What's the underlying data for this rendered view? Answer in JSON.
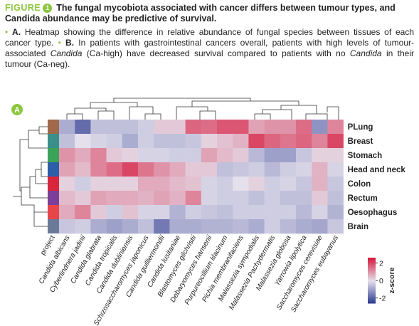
{
  "figure": {
    "label": "FIGURE",
    "number": "1",
    "title": "The fungal mycobiota associated with cancer differs between tumour types, and Candida abundance may be predictive of survival."
  },
  "caption": [
    "A.",
    " Heatmap showing the difference in relative abundance of fungal species between tissues of each cancer type. ",
    "B.",
    " In patients with gastrointestinal cancers overall, patients with high levels of tumour-associated ",
    "Candida",
    " (Ca-high) have decreased survival compared to patients with no ",
    "Candida",
    " in their tumour (Ca-neg)."
  ],
  "chart_data": {
    "type": "heatmap",
    "panel": "A",
    "project_label": "project",
    "columns": [
      "Candida albicans",
      "Cyberlindnera jadinii",
      "Candida glabrata",
      "Candida tropicalis",
      "Candida dubliniensis",
      "Schizosaccharomyces japonicus",
      "Candida guilliermondii",
      "Candida lusitaniae",
      "Blastomyces gilchristii",
      "Debaryomyces hansenii",
      "Purpureocillium lilacinum",
      "Pichia membranifaciens",
      "Malassezia sympodialis",
      "Malassezia Pachydermatis",
      "Malassezia globosa",
      "Yarrowia lipolytica",
      "Saccharomyces cerevisiae",
      "Saccharomyces eubayanus"
    ],
    "rows": [
      "PLung",
      "Breast",
      "Stomach",
      "Head and neck",
      "Colon",
      "Rectum",
      "Oesophagus",
      "Brain"
    ],
    "row_colors": [
      "#a0694a",
      "#3a8f8a",
      "#3aa35a",
      "#2b5fa8",
      "#d7263d",
      "#7b3f9a",
      "#e8454a",
      "#6b7a99"
    ],
    "values": [
      [
        -0.8,
        -1.8,
        -0.5,
        -0.5,
        -0.5,
        -0.3,
        0.3,
        0.3,
        1.6,
        1.5,
        1.8,
        1.8,
        0.8,
        1.0,
        1.0,
        1.5,
        -1.2,
        1.2
      ],
      [
        -0.5,
        0.0,
        -0.2,
        -0.3,
        -0.8,
        -0.3,
        -0.5,
        -0.5,
        -0.4,
        0.2,
        0.4,
        0.6,
        2.0,
        1.6,
        1.4,
        1.6,
        1.2,
        2.0
      ],
      [
        1.0,
        0.7,
        1.2,
        0.3,
        0.2,
        -0.2,
        -0.2,
        -0.3,
        -0.3,
        0.8,
        0.5,
        0.3,
        -0.6,
        -1.0,
        -1.0,
        -0.4,
        0.2,
        0.2
      ],
      [
        0.8,
        0.5,
        1.2,
        1.5,
        2.0,
        1.4,
        1.0,
        0.7,
        0.3,
        0.3,
        -0.5,
        -0.4,
        -0.3,
        -0.6,
        -0.3,
        -0.2,
        0.6,
        -0.2
      ],
      [
        0.2,
        -0.3,
        0.2,
        0.2,
        0.2,
        0.7,
        0.7,
        0.5,
        0.4,
        -0.2,
        -0.3,
        0.0,
        0.2,
        -0.3,
        -0.2,
        -0.4,
        0.6,
        -0.4
      ],
      [
        0.5,
        0.3,
        0.8,
        0.7,
        0.7,
        0.6,
        0.8,
        0.6,
        1.2,
        -0.2,
        -0.3,
        -0.3,
        -0.5,
        -0.3,
        -0.5,
        -0.5,
        0.3,
        -0.5
      ],
      [
        0.7,
        1.2,
        0.3,
        -0.3,
        0.4,
        -0.2,
        -0.2,
        -0.7,
        -0.3,
        -0.4,
        -0.5,
        -0.3,
        -0.3,
        -0.3,
        -0.3,
        -0.6,
        -0.2,
        -0.7
      ],
      [
        -0.4,
        -0.3,
        -0.8,
        -1.0,
        -0.8,
        -0.5,
        -1.6,
        -0.8,
        -0.8,
        -0.7,
        -0.7,
        -0.6,
        -0.8,
        -0.3,
        -0.6,
        -0.8,
        -0.9,
        -0.4
      ]
    ],
    "colorbar_title": "z-score",
    "zlim": [
      -2.6,
      2.6
    ],
    "zticks": [
      -2,
      0,
      2
    ],
    "colors": [
      "#2b3990",
      "#e4e0ec",
      "#d7193c"
    ]
  }
}
